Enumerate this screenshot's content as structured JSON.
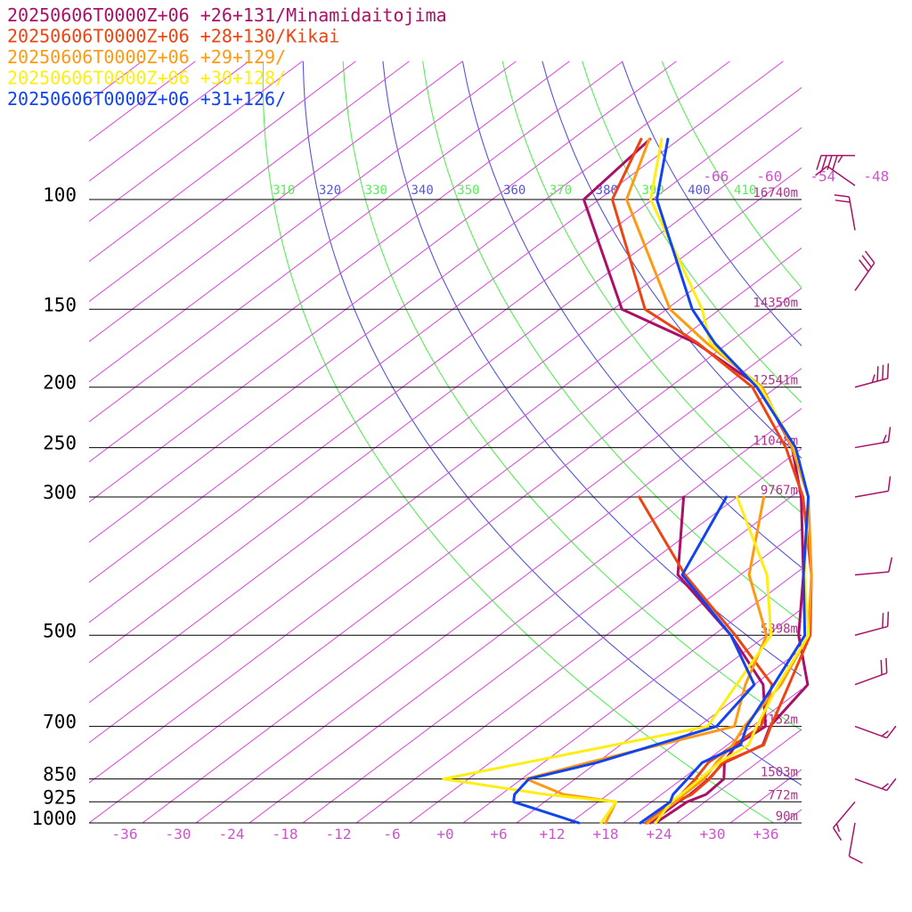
{
  "chart_data": {
    "type": "line",
    "xlim": [
      -40,
      40
    ],
    "pressure_range": [
      1000,
      80
    ],
    "pressure_levels": [
      {
        "p": 100,
        "label": "100",
        "height": "16740m"
      },
      {
        "p": 150,
        "label": "150",
        "height": "14350m"
      },
      {
        "p": 200,
        "label": "200",
        "height": "12541m"
      },
      {
        "p": 250,
        "label": "250",
        "height": "11048m"
      },
      {
        "p": 300,
        "label": "300",
        "height": "9767m"
      },
      {
        "p": 500,
        "label": "500",
        "height": "5898m"
      },
      {
        "p": 700,
        "label": "700",
        "height": "3152m"
      },
      {
        "p": 850,
        "label": "850",
        "height": "1503m"
      },
      {
        "p": 925,
        "label": "925",
        "height": "772m"
      },
      {
        "p": 1000,
        "label": "1000",
        "height": "90m"
      }
    ],
    "temperature_ticks": [
      {
        "t": -36,
        "label": "-36"
      },
      {
        "t": -30,
        "label": "-30"
      },
      {
        "t": -24,
        "label": "-24"
      },
      {
        "t": -18,
        "label": "-18"
      },
      {
        "t": -12,
        "label": "-12"
      },
      {
        "t": -6,
        "label": "-6"
      },
      {
        "t": 0,
        "label": "+0"
      },
      {
        "t": 6,
        "label": "+6"
      },
      {
        "t": 12,
        "label": "+12"
      },
      {
        "t": 18,
        "label": "+18"
      },
      {
        "t": 24,
        "label": "+24"
      },
      {
        "t": 30,
        "label": "+30"
      },
      {
        "t": 36,
        "label": "+36"
      }
    ],
    "isotherm_labels": [
      {
        "t": -66,
        "label": "-66"
      },
      {
        "t": -60,
        "label": "-60"
      },
      {
        "t": -54,
        "label": "-54"
      },
      {
        "t": -48,
        "label": "-48"
      }
    ],
    "theta_lines": [
      {
        "theta": 310,
        "label": "310",
        "color": "#55ee55"
      },
      {
        "theta": 320,
        "label": "320",
        "color": "#5555dd"
      },
      {
        "theta": 330,
        "label": "330",
        "color": "#55ee55"
      },
      {
        "theta": 340,
        "label": "340",
        "color": "#5555dd"
      },
      {
        "theta": 350,
        "label": "350",
        "color": "#55ee55"
      },
      {
        "theta": 360,
        "label": "360",
        "color": "#5555dd"
      },
      {
        "theta": 370,
        "label": "370",
        "color": "#55ee55"
      },
      {
        "theta": 380,
        "label": "380",
        "color": "#5555dd"
      },
      {
        "theta": 390,
        "label": "390",
        "color": "#55ee55"
      },
      {
        "theta": 400,
        "label": "400",
        "color": "#5555dd"
      },
      {
        "theta": 410,
        "label": "410",
        "color": "#55ee55"
      }
    ],
    "colors": {
      "isotherm": "#dd44dd",
      "axis_label": "#cc55cc",
      "height_label": "#aa3388",
      "isobar": "#000000"
    },
    "series": [
      {
        "name": "20250606T0000Z+06 +26+131/Minamidaitojima",
        "color": "#aa1166",
        "temperature": [
          [
            1000,
            23.6
          ],
          [
            925,
            24.0
          ],
          [
            900,
            25.0
          ],
          [
            850,
            24.7
          ],
          [
            800,
            22.3
          ],
          [
            750,
            24.0
          ],
          [
            700,
            22.0
          ],
          [
            600,
            20.0
          ],
          [
            550,
            16.0
          ],
          [
            500,
            11.6
          ],
          [
            400,
            3.1
          ],
          [
            300,
            -8.8
          ],
          [
            250,
            -17.2
          ],
          [
            200,
            -29.8
          ],
          [
            170,
            -43.6
          ],
          [
            150,
            -57.0
          ],
          [
            100,
            -77.7
          ],
          [
            80,
            -79.3
          ]
        ],
        "dewpoint": [
          [
            1000,
            23.0
          ],
          [
            925,
            23.0
          ],
          [
            900,
            23.2
          ],
          [
            850,
            23.0
          ],
          [
            800,
            22.2
          ],
          [
            750,
            21.0
          ],
          [
            700,
            21.5
          ],
          [
            600,
            15.0
          ],
          [
            500,
            4.0
          ],
          [
            400,
            -11.0
          ],
          [
            300,
            -22.0
          ]
        ]
      },
      {
        "name": "20250606T0000Z+06 +28+130/Kikai",
        "color": "#ee4411",
        "temperature": [
          [
            1000,
            22.7
          ],
          [
            925,
            22.7
          ],
          [
            900,
            23.4
          ],
          [
            850,
            23.1
          ],
          [
            800,
            22.1
          ],
          [
            750,
            24.1
          ],
          [
            700,
            22.1
          ],
          [
            600,
            17.9
          ],
          [
            500,
            12.9
          ],
          [
            400,
            4.0
          ],
          [
            300,
            -8.6
          ],
          [
            250,
            -17.9
          ],
          [
            200,
            -30.7
          ],
          [
            170,
            -43.4
          ],
          [
            150,
            -54.4
          ],
          [
            100,
            -74.5
          ],
          [
            80,
            -80.3
          ]
        ],
        "dewpoint": [
          [
            1000,
            22.5
          ],
          [
            925,
            22.5
          ],
          [
            900,
            22.2
          ],
          [
            850,
            21.5
          ],
          [
            800,
            20.5
          ],
          [
            700,
            21.0
          ],
          [
            600,
            16.0
          ],
          [
            500,
            4.5
          ],
          [
            400,
            -10.2
          ],
          [
            300,
            -27.0
          ]
        ]
      },
      {
        "name": "20250606T0000Z+06 +29+129/",
        "color": "#ff9911",
        "temperature": [
          [
            1000,
            22.7
          ],
          [
            925,
            22.7
          ],
          [
            900,
            22.5
          ],
          [
            850,
            22.5
          ],
          [
            800,
            21.4
          ],
          [
            750,
            20.6
          ],
          [
            700,
            19.1
          ],
          [
            600,
            17.0
          ],
          [
            500,
            12.7
          ],
          [
            400,
            4.0
          ],
          [
            300,
            -8.0
          ],
          [
            250,
            -17.2
          ],
          [
            200,
            -29.6
          ],
          [
            170,
            -42.4
          ],
          [
            150,
            -51.6
          ],
          [
            100,
            -72.9
          ],
          [
            80,
            -79.4
          ]
        ],
        "dewpoint": [
          [
            1000,
            18.0
          ],
          [
            925,
            16.0
          ],
          [
            900,
            9.0
          ],
          [
            850,
            2.5
          ],
          [
            800,
            7.0
          ],
          [
            700,
            18.0
          ],
          [
            600,
            13.0
          ],
          [
            500,
            8.0
          ],
          [
            400,
            -3.0
          ],
          [
            300,
            -13.0
          ]
        ]
      },
      {
        "name": "20250606T0000Z+06 +30+128/",
        "color": "#ffee11",
        "temperature": [
          [
            1000,
            23.6
          ],
          [
            925,
            22.2
          ],
          [
            900,
            22.2
          ],
          [
            850,
            22.0
          ],
          [
            800,
            21.7
          ],
          [
            750,
            22.4
          ],
          [
            700,
            20.5
          ],
          [
            600,
            16.7
          ],
          [
            500,
            12.7
          ],
          [
            400,
            3.2
          ],
          [
            300,
            -8.0
          ],
          [
            250,
            -16.9
          ],
          [
            200,
            -29.8
          ],
          [
            170,
            -42.0
          ],
          [
            150,
            -48.0
          ],
          [
            100,
            -70.2
          ],
          [
            80,
            -78.0
          ]
        ],
        "dewpoint": [
          [
            1000,
            17.5
          ],
          [
            925,
            16.0
          ],
          [
            900,
            7.0
          ],
          [
            850,
            -6.8
          ],
          [
            800,
            0.0
          ],
          [
            700,
            15.0
          ],
          [
            600,
            12.0
          ],
          [
            500,
            8.5
          ],
          [
            400,
            -1.0
          ],
          [
            300,
            -16.0
          ]
        ]
      },
      {
        "name": "20250606T0000Z+06 +31+126/",
        "color": "#1144ee",
        "temperature": [
          [
            1000,
            21.9
          ],
          [
            925,
            22.1
          ],
          [
            900,
            21.3
          ],
          [
            850,
            20.6
          ],
          [
            800,
            19.8
          ],
          [
            750,
            21.5
          ],
          [
            700,
            19.4
          ],
          [
            600,
            16.2
          ],
          [
            500,
            12.3
          ],
          [
            400,
            3.1
          ],
          [
            300,
            -8.0
          ],
          [
            250,
            -16.8
          ],
          [
            200,
            -30.2
          ],
          [
            170,
            -41.5
          ],
          [
            150,
            -49.1
          ],
          [
            100,
            -69.5
          ],
          [
            80,
            -77.3
          ]
        ],
        "dewpoint": [
          [
            1000,
            15.0
          ],
          [
            925,
            4.5
          ],
          [
            900,
            3.5
          ],
          [
            850,
            2.8
          ],
          [
            800,
            8.0
          ],
          [
            700,
            16.0
          ],
          [
            600,
            14.0
          ],
          [
            500,
            4.0
          ],
          [
            400,
            -10.5
          ],
          [
            300,
            -17.2
          ]
        ]
      }
    ],
    "wind_barbs": [
      {
        "p": 85,
        "direction": 270,
        "speed": 45
      },
      {
        "p": 95,
        "direction": 305,
        "speed": 10
      },
      {
        "p": 112,
        "direction": 350,
        "speed": 20
      },
      {
        "p": 140,
        "direction": 35,
        "speed": 30
      },
      {
        "p": 200,
        "direction": 75,
        "speed": 35
      },
      {
        "p": 250,
        "direction": 80,
        "speed": 15
      },
      {
        "p": 300,
        "direction": 80,
        "speed": 10
      },
      {
        "p": 400,
        "direction": 85,
        "speed": 10
      },
      {
        "p": 500,
        "direction": 75,
        "speed": 20
      },
      {
        "p": 600,
        "direction": 70,
        "speed": 20
      },
      {
        "p": 700,
        "direction": 110,
        "speed": 15
      },
      {
        "p": 850,
        "direction": 110,
        "speed": 15
      },
      {
        "p": 925,
        "direction": 220,
        "speed": 15
      },
      {
        "p": 1000,
        "direction": 190,
        "speed": 10
      }
    ]
  }
}
